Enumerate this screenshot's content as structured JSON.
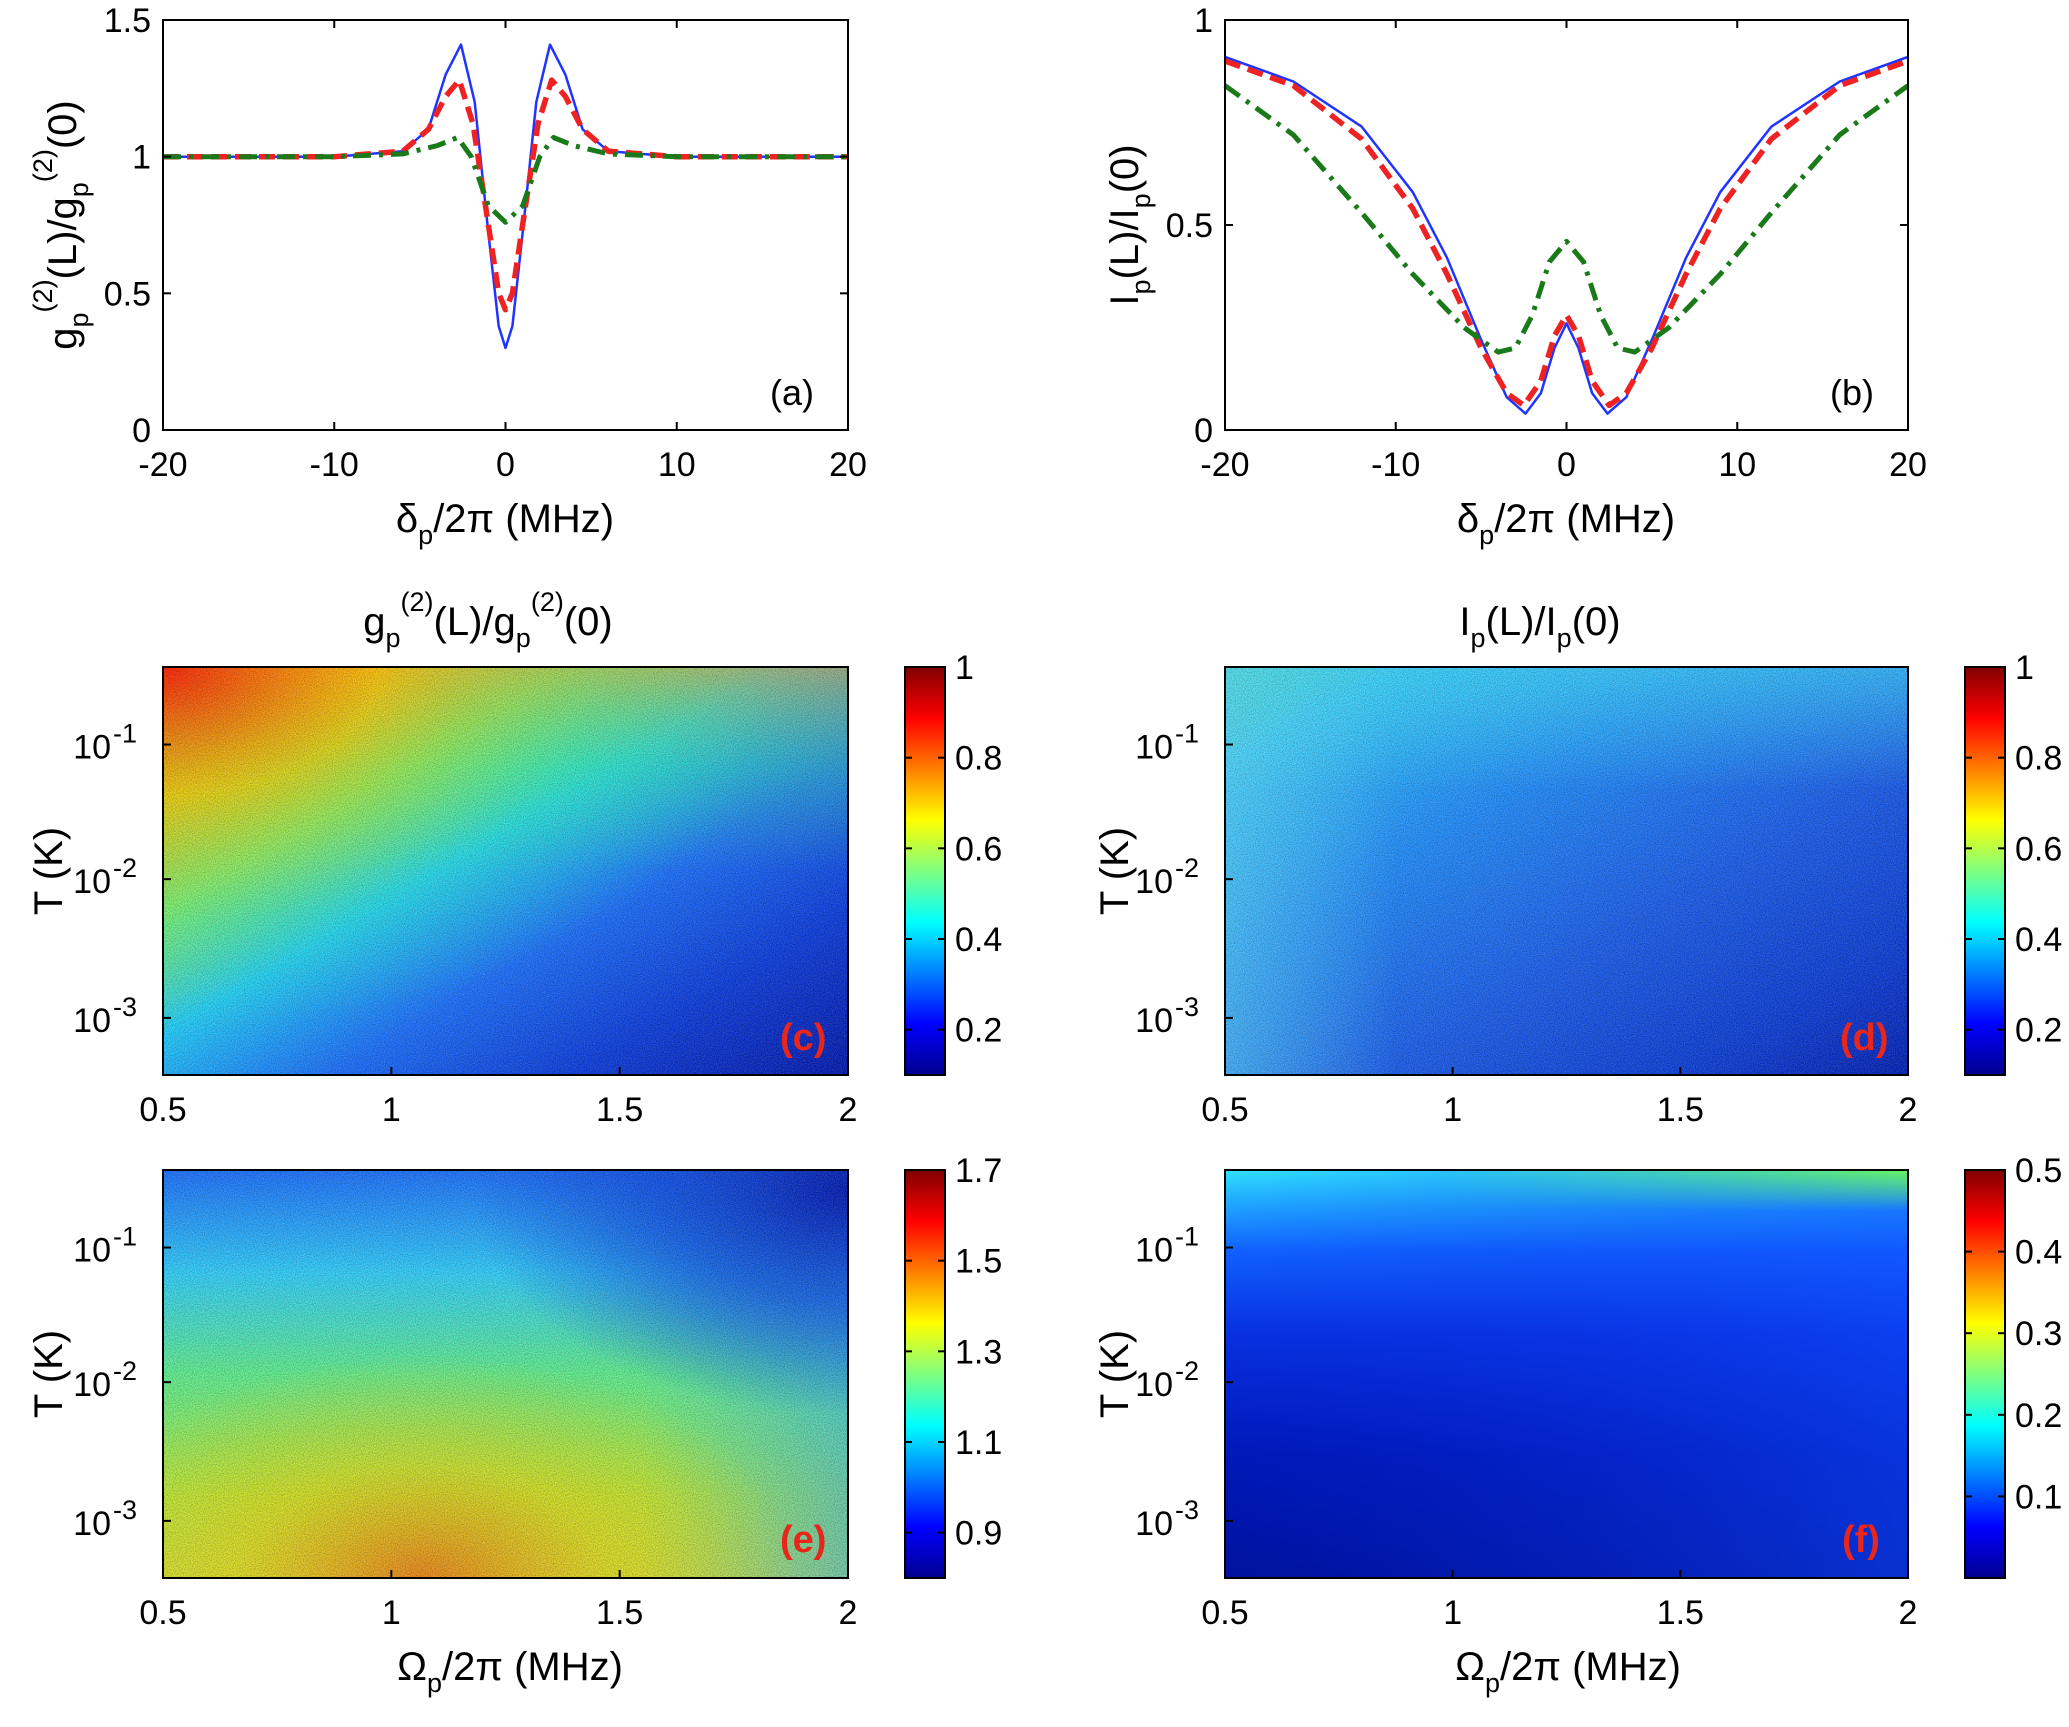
{
  "chart_data": [
    {
      "panel": "(a)",
      "type": "line",
      "xlim": [
        -20,
        20
      ],
      "ylim": [
        0,
        1.5
      ],
      "xticks": [
        "-20",
        "-10",
        "0",
        "10",
        "20"
      ],
      "yticks": [
        "0",
        "0.5",
        "1",
        "1.5"
      ],
      "xlabel": {
        "sym": "δ",
        "sub": "p",
        "rest": "/2π (MHz)"
      },
      "ylabel": {
        "a": "g",
        "asub": "p",
        "asup": "(2)",
        "mid": "(L)/g",
        "bsub": "p",
        "bsup": "(2)",
        "end": "(0)"
      },
      "series": [
        {
          "color": "#1f35ff",
          "style": "solid",
          "values": [
            [
              -20,
              1.0
            ],
            [
              -10,
              1.0
            ],
            [
              -6,
              1.02
            ],
            [
              -4.5,
              1.1
            ],
            [
              -3.5,
              1.3
            ],
            [
              -2.6,
              1.41
            ],
            [
              -1.8,
              1.2
            ],
            [
              -1,
              0.72
            ],
            [
              -0.4,
              0.38
            ],
            [
              0,
              0.3
            ],
            [
              0.4,
              0.38
            ],
            [
              1,
              0.72
            ],
            [
              1.8,
              1.2
            ],
            [
              2.6,
              1.41
            ],
            [
              3.5,
              1.3
            ],
            [
              4.5,
              1.1
            ],
            [
              6,
              1.02
            ],
            [
              10,
              1.0
            ],
            [
              20,
              1.0
            ]
          ]
        },
        {
          "color": "#ee2222",
          "style": "dashed",
          "values": [
            [
              -20,
              1.0
            ],
            [
              -10,
              1.0
            ],
            [
              -6,
              1.02
            ],
            [
              -4.5,
              1.1
            ],
            [
              -3.5,
              1.22
            ],
            [
              -2.7,
              1.28
            ],
            [
              -1.9,
              1.12
            ],
            [
              -1,
              0.75
            ],
            [
              -0.4,
              0.5
            ],
            [
              0,
              0.44
            ],
            [
              0.4,
              0.5
            ],
            [
              1,
              0.75
            ],
            [
              1.9,
              1.12
            ],
            [
              2.7,
              1.28
            ],
            [
              3.5,
              1.22
            ],
            [
              4.5,
              1.1
            ],
            [
              6,
              1.02
            ],
            [
              10,
              1.0
            ],
            [
              20,
              1.0
            ]
          ]
        },
        {
          "color": "#1a7a1a",
          "style": "dashdot",
          "values": [
            [
              -20,
              1.0
            ],
            [
              -10,
              1.0
            ],
            [
              -6,
              1.01
            ],
            [
              -4,
              1.04
            ],
            [
              -2.8,
              1.07
            ],
            [
              -2,
              1.0
            ],
            [
              -1,
              0.82
            ],
            [
              0,
              0.76
            ],
            [
              1,
              0.82
            ],
            [
              2,
              1.0
            ],
            [
              2.8,
              1.07
            ],
            [
              4,
              1.04
            ],
            [
              6,
              1.01
            ],
            [
              10,
              1.0
            ],
            [
              20,
              1.0
            ]
          ]
        }
      ]
    },
    {
      "panel": "(b)",
      "type": "line",
      "xlim": [
        -20,
        20
      ],
      "ylim": [
        0,
        1
      ],
      "xticks": [
        "-20",
        "-10",
        "0",
        "10",
        "20"
      ],
      "yticks": [
        "0",
        "0.5",
        "1"
      ],
      "xlabel": {
        "sym": "δ",
        "sub": "p",
        "rest": "/2π (MHz)"
      },
      "ylabel": {
        "a": "I",
        "asub": "p",
        "mid": "(L)/I",
        "bsub": "p",
        "end": "(0)"
      },
      "series": [
        {
          "color": "#1f35ff",
          "style": "solid",
          "values": [
            [
              -20,
              0.91
            ],
            [
              -16,
              0.85
            ],
            [
              -12,
              0.74
            ],
            [
              -9,
              0.58
            ],
            [
              -7,
              0.42
            ],
            [
              -5,
              0.22
            ],
            [
              -3.5,
              0.08
            ],
            [
              -2.4,
              0.04
            ],
            [
              -1.5,
              0.09
            ],
            [
              -0.7,
              0.2
            ],
            [
              0,
              0.26
            ],
            [
              0.7,
              0.2
            ],
            [
              1.5,
              0.09
            ],
            [
              2.4,
              0.04
            ],
            [
              3.5,
              0.08
            ],
            [
              5,
              0.22
            ],
            [
              7,
              0.42
            ],
            [
              9,
              0.58
            ],
            [
              12,
              0.74
            ],
            [
              16,
              0.85
            ],
            [
              20,
              0.91
            ]
          ]
        },
        {
          "color": "#ee2222",
          "style": "dashed",
          "values": [
            [
              -20,
              0.9
            ],
            [
              -16,
              0.84
            ],
            [
              -12,
              0.71
            ],
            [
              -9,
              0.54
            ],
            [
              -7,
              0.38
            ],
            [
              -5,
              0.2
            ],
            [
              -3.5,
              0.09
            ],
            [
              -2.5,
              0.06
            ],
            [
              -1.5,
              0.12
            ],
            [
              -0.7,
              0.23
            ],
            [
              0,
              0.28
            ],
            [
              0.7,
              0.23
            ],
            [
              1.5,
              0.12
            ],
            [
              2.5,
              0.06
            ],
            [
              3.5,
              0.09
            ],
            [
              5,
              0.2
            ],
            [
              7,
              0.38
            ],
            [
              9,
              0.54
            ],
            [
              12,
              0.71
            ],
            [
              16,
              0.84
            ],
            [
              20,
              0.9
            ]
          ]
        },
        {
          "color": "#1a7a1a",
          "style": "dashdot",
          "values": [
            [
              -20,
              0.84
            ],
            [
              -16,
              0.72
            ],
            [
              -12,
              0.53
            ],
            [
              -9,
              0.38
            ],
            [
              -6,
              0.25
            ],
            [
              -4,
              0.19
            ],
            [
              -3,
              0.2
            ],
            [
              -2,
              0.28
            ],
            [
              -1,
              0.41
            ],
            [
              0,
              0.46
            ],
            [
              1,
              0.41
            ],
            [
              2,
              0.28
            ],
            [
              3,
              0.2
            ],
            [
              4,
              0.19
            ],
            [
              6,
              0.25
            ],
            [
              9,
              0.38
            ],
            [
              12,
              0.53
            ],
            [
              16,
              0.72
            ],
            [
              20,
              0.84
            ]
          ]
        }
      ]
    },
    {
      "panel": "(c)",
      "type": "heatmap",
      "title": {
        "a": "g",
        "asub": "p",
        "asup": "(2)",
        "mid": "(L)/g",
        "bsub": "p",
        "bsup": "(2)",
        "end": "(0)"
      },
      "xlim": [
        0.5,
        2
      ],
      "xticks": [
        "0.5",
        "1",
        "1.5",
        "2"
      ],
      "yticks": [
        "10",
        "10",
        "10"
      ],
      "ytick_exps": [
        "-1",
        "-2",
        "-3"
      ],
      "ylabel": "T (K)",
      "yscale": "log",
      "colorbar": {
        "min": 0.1,
        "max": 1,
        "ticks": [
          "1",
          "0.8",
          "0.6",
          "0.4",
          "0.2"
        ]
      }
    },
    {
      "panel": "(d)",
      "type": "heatmap",
      "title": {
        "a": "I",
        "asub": "p",
        "mid": "(L)/I",
        "bsub": "p",
        "end": "(0)"
      },
      "xlim": [
        0.5,
        2
      ],
      "xticks": [
        "0.5",
        "1",
        "1.5",
        "2"
      ],
      "yticks": [
        "10",
        "10",
        "10"
      ],
      "ytick_exps": [
        "-1",
        "-2",
        "-3"
      ],
      "ylabel": "T (K)",
      "yscale": "log",
      "colorbar": {
        "min": 0.1,
        "max": 1,
        "ticks": [
          "1",
          "0.8",
          "0.6",
          "0.4",
          "0.2"
        ]
      }
    },
    {
      "panel": "(e)",
      "type": "heatmap",
      "xlim": [
        0.5,
        2
      ],
      "xticks": [
        "0.5",
        "1",
        "1.5",
        "2"
      ],
      "yticks": [
        "10",
        "10",
        "10"
      ],
      "ytick_exps": [
        "-1",
        "-2",
        "-3"
      ],
      "ylabel": "T (K)",
      "yscale": "log",
      "xlabel": {
        "sym": "Ω",
        "sub": "p",
        "rest": "/2π (MHz)"
      },
      "colorbar": {
        "min": 0.8,
        "max": 1.7,
        "ticks": [
          "1.7",
          "1.5",
          "1.3",
          "1.1",
          "0.9"
        ]
      }
    },
    {
      "panel": "(f)",
      "type": "heatmap",
      "xlim": [
        0.5,
        2
      ],
      "xticks": [
        "0.5",
        "1",
        "1.5",
        "2"
      ],
      "yticks": [
        "10",
        "10",
        "10"
      ],
      "ytick_exps": [
        "-1",
        "-2",
        "-3"
      ],
      "ylabel": "T (K)",
      "yscale": "log",
      "xlabel": {
        "sym": "Ω",
        "sub": "p",
        "rest": "/2π (MHz)"
      },
      "colorbar": {
        "min": 0.0,
        "max": 0.5,
        "ticks": [
          "0.5",
          "0.4",
          "0.3",
          "0.2",
          "0.1"
        ]
      }
    }
  ]
}
